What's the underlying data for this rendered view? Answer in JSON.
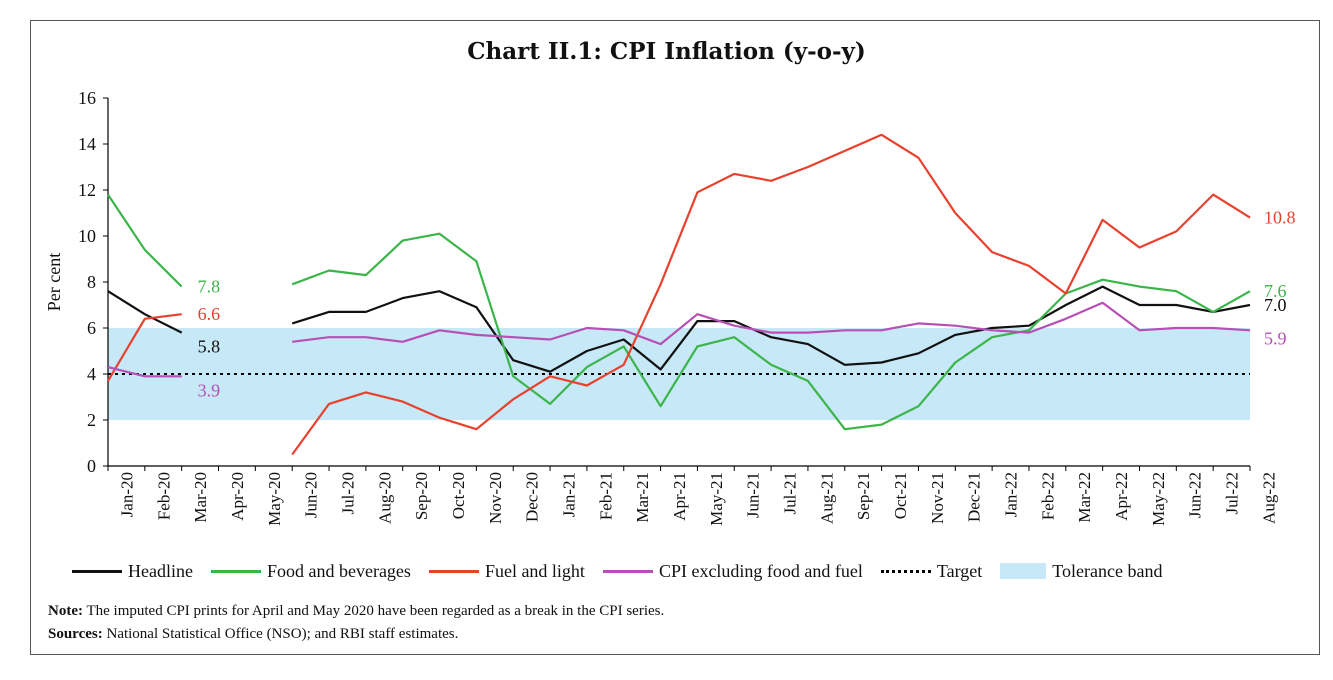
{
  "chart_data": {
    "type": "line",
    "title": "Chart II.1: CPI Inflation (y-o-y)",
    "ylabel": "Per cent",
    "ylim": [
      0,
      16
    ],
    "yticks": [
      0,
      2,
      4,
      6,
      8,
      10,
      12,
      14,
      16
    ],
    "x": [
      "Jan-20",
      "Feb-20",
      "Mar-20",
      "Apr-20",
      "May-20",
      "Jun-20",
      "Jul-20",
      "Aug-20",
      "Sep-20",
      "Oct-20",
      "Nov-20",
      "Dec-20",
      "Jan-21",
      "Feb-21",
      "Mar-21",
      "Apr-21",
      "May-21",
      "Jun-21",
      "Jul-21",
      "Aug-21",
      "Sep-21",
      "Oct-21",
      "Nov-21",
      "Dec-21",
      "Jan-22",
      "Feb-22",
      "Mar-22",
      "Apr-22",
      "May-22",
      "Jun-22",
      "Jul-22",
      "Aug-22"
    ],
    "series": [
      {
        "name": "Headline",
        "color": "#111111",
        "values": [
          7.6,
          6.6,
          5.8,
          null,
          null,
          6.2,
          6.7,
          6.7,
          7.3,
          7.6,
          6.9,
          4.6,
          4.1,
          5.0,
          5.5,
          4.2,
          6.3,
          6.3,
          5.6,
          5.3,
          4.4,
          4.5,
          4.9,
          5.7,
          6.0,
          6.1,
          7.0,
          7.8,
          7.0,
          7.0,
          6.7,
          7.0
        ]
      },
      {
        "name": "Food and beverages",
        "color": "#3bb54a",
        "values": [
          11.8,
          9.4,
          7.8,
          null,
          null,
          7.9,
          8.5,
          8.3,
          9.8,
          10.1,
          8.9,
          3.9,
          2.7,
          4.3,
          5.2,
          2.6,
          5.2,
          5.6,
          4.4,
          3.7,
          1.6,
          1.8,
          2.6,
          4.5,
          5.6,
          5.9,
          7.5,
          8.1,
          7.8,
          7.6,
          6.7,
          7.6
        ]
      },
      {
        "name": "Fuel and light",
        "color": "#e8412e",
        "values": [
          3.7,
          6.4,
          6.6,
          null,
          null,
          0.5,
          2.7,
          3.2,
          2.8,
          2.1,
          1.6,
          2.9,
          3.9,
          3.5,
          4.4,
          7.9,
          11.9,
          12.7,
          12.4,
          13.0,
          13.7,
          14.4,
          13.4,
          11.0,
          9.3,
          8.7,
          7.5,
          10.7,
          9.5,
          10.2,
          11.8,
          10.8
        ]
      },
      {
        "name": "CPI excluding food and fuel",
        "color": "#b74fb5",
        "values": [
          4.3,
          3.9,
          3.9,
          null,
          null,
          5.4,
          5.6,
          5.6,
          5.4,
          5.9,
          5.7,
          5.6,
          5.5,
          6.0,
          5.9,
          5.3,
          6.6,
          6.1,
          5.8,
          5.8,
          5.9,
          5.9,
          6.2,
          6.1,
          5.9,
          5.8,
          6.4,
          7.1,
          5.9,
          6.0,
          6.0,
          5.9
        ]
      }
    ],
    "reference_lines": [
      {
        "name": "Target",
        "value": 4,
        "style": "dotted",
        "color": "#000000"
      }
    ],
    "bands": [
      {
        "name": "Tolerance band",
        "from": 2,
        "to": 6,
        "color": "#c6e8f7"
      }
    ],
    "end_labels": [
      {
        "series": "Food and beverages",
        "text": "7.8",
        "x_index": 2,
        "color": "#3bb54a"
      },
      {
        "series": "Fuel and light",
        "text": "6.6",
        "x_index": 2,
        "color": "#e8412e"
      },
      {
        "series": "Headline",
        "text": "5.8",
        "x_index": 2,
        "color": "#111111"
      },
      {
        "series": "CPI excluding food and fuel",
        "text": "3.9",
        "x_index": 2,
        "color": "#b74fb5"
      },
      {
        "series": "Fuel and light",
        "text": "10.8",
        "x_index": 31,
        "color": "#e8412e"
      },
      {
        "series": "Food and beverages",
        "text": "7.6",
        "x_index": 31,
        "color": "#3bb54a"
      },
      {
        "series": "Headline",
        "text": "7.0",
        "x_index": 31,
        "color": "#111111"
      },
      {
        "series": "CPI excluding food and fuel",
        "text": "5.9",
        "x_index": 31,
        "color": "#b74fb5"
      }
    ],
    "legend": {
      "placement": "bottom",
      "items": [
        {
          "label": "Headline",
          "kind": "line",
          "color": "#111111"
        },
        {
          "label": "Food and beverages",
          "kind": "line",
          "color": "#3bb54a"
        },
        {
          "label": "Fuel and light",
          "kind": "line",
          "color": "#e8412e"
        },
        {
          "label": "CPI excluding food and fuel",
          "kind": "line",
          "color": "#b74fb5"
        },
        {
          "label": "Target",
          "kind": "dotted",
          "color": "#000000"
        },
        {
          "label": "Tolerance band",
          "kind": "band",
          "color": "#c6e8f7"
        }
      ]
    }
  },
  "note": {
    "label": "Note:",
    "text": " The imputed CPI prints for April and May 2020 have been regarded as a break in the CPI series."
  },
  "sources": {
    "label": "Sources:",
    "text": " National Statistical Office (NSO); and RBI staff estimates."
  }
}
